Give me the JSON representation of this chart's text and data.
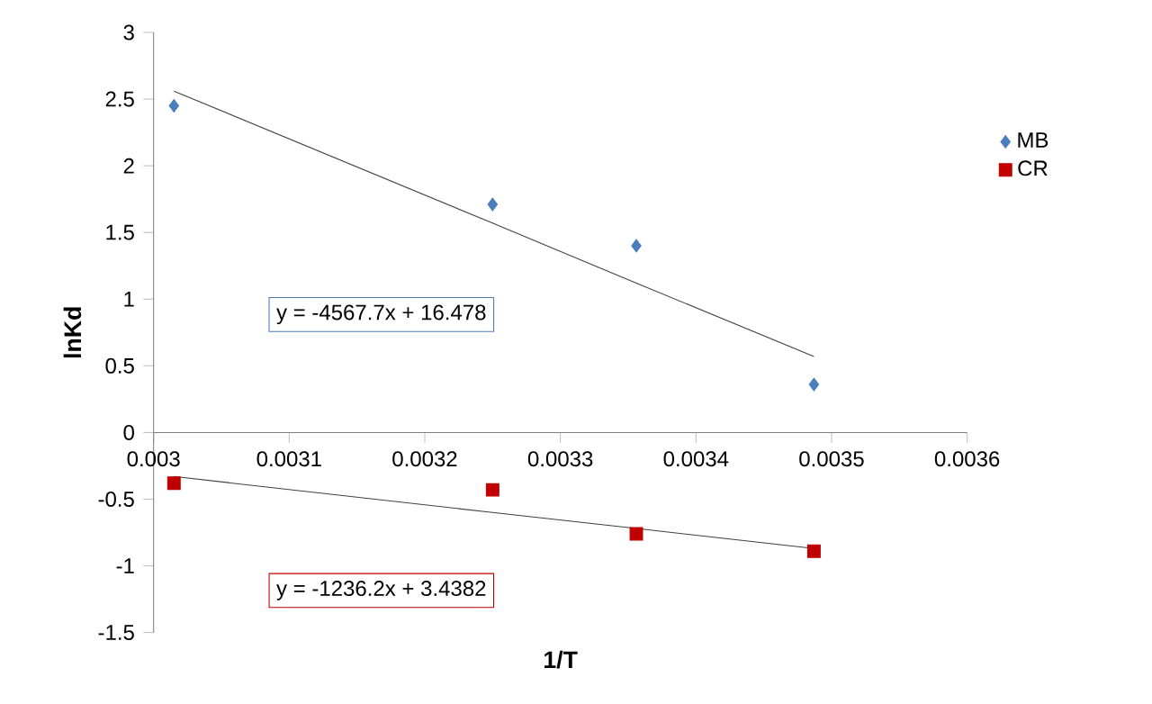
{
  "chart_data": {
    "type": "scatter",
    "xlabel": "1/T",
    "ylabel": "lnKd",
    "x": [
      0.003015,
      0.00325,
      0.003356,
      0.003487
    ],
    "series": [
      {
        "name": "MB",
        "color": "#4a7ebb",
        "marker": "diamond",
        "values": [
          2.45,
          1.71,
          1.4,
          0.36
        ]
      },
      {
        "name": "CR",
        "color": "#c00000",
        "marker": "square",
        "values": [
          -0.38,
          -0.43,
          -0.76,
          -0.89
        ]
      },
      {
        "type": "line",
        "color": "#404040",
        "marker": "none",
        "values": [
          2.56,
          1.57,
          1.12,
          0.57
        ]
      },
      {
        "type": "line",
        "color": "#404040",
        "marker": "none",
        "values": [
          -0.33,
          -0.6,
          -0.72,
          -0.87
        ]
      }
    ],
    "xlim": [
      0.003,
      0.0036
    ],
    "ylim": [
      -1.5,
      3
    ],
    "xticks": [
      0.003,
      0.0031,
      0.0032,
      0.0033,
      0.0034,
      0.0035,
      0.0036
    ],
    "yticks": [
      -1.5,
      -1,
      -0.5,
      0,
      0.5,
      1,
      1.5,
      2,
      2.5,
      3
    ],
    "legend": "right",
    "grid": false,
    "annotations": [
      "y = -4567.7x + 16.478",
      "y = -1236.2x + 3.4382"
    ]
  }
}
